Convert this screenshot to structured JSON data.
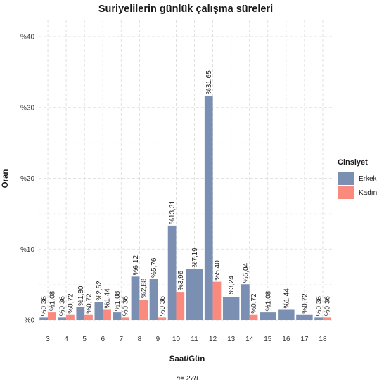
{
  "chart_data": {
    "type": "bar",
    "title": "Suriyelilerin günlük çalışma süreleri",
    "xlabel": "Saat/Gün",
    "ylabel": "Oran",
    "ylim": [
      0,
      40
    ],
    "yticks": [
      0,
      10,
      20,
      30,
      40
    ],
    "ytick_labels": [
      "%0",
      "%10",
      "%20",
      "%30",
      "%40"
    ],
    "grid": true,
    "legend": {
      "title": "Cinsiyet",
      "position": "right"
    },
    "note": "n= 278",
    "categories": [
      "3",
      "4",
      "5",
      "6",
      "7",
      "8",
      "9",
      "10",
      "11",
      "12",
      "13",
      "14",
      "15",
      "16",
      "17",
      "18"
    ],
    "series": [
      {
        "name": "Erkek",
        "color": "#7b8fb3",
        "values": [
          0.36,
          0.36,
          1.8,
          2.52,
          1.08,
          6.12,
          5.76,
          13.31,
          7.19,
          31.65,
          3.24,
          5.04,
          1.08,
          1.44,
          0.72,
          0.36
        ],
        "labels": [
          "%0,36",
          "%0,36",
          "%1,80",
          "%2,52",
          "%1,08",
          "%6,12",
          "%5,76",
          "%13,31",
          "%7,19",
          "%31,65",
          "%3,24",
          "%5,04",
          "%1,08",
          "%1,44",
          "%0,72",
          "%0,36"
        ]
      },
      {
        "name": "Kadın",
        "color": "#fa8a7d",
        "values": [
          1.08,
          0.72,
          0.72,
          1.44,
          0.36,
          2.88,
          0.36,
          3.96,
          null,
          5.4,
          null,
          0.72,
          null,
          null,
          null,
          0.36
        ],
        "labels": [
          "%1,08",
          "%0,72",
          "%0,72",
          "%1,44",
          "%0,36",
          "%2,88",
          "%0,36",
          "%3,96",
          null,
          "%5,40",
          null,
          "%0,72",
          null,
          null,
          null,
          "%0,36"
        ]
      }
    ]
  }
}
